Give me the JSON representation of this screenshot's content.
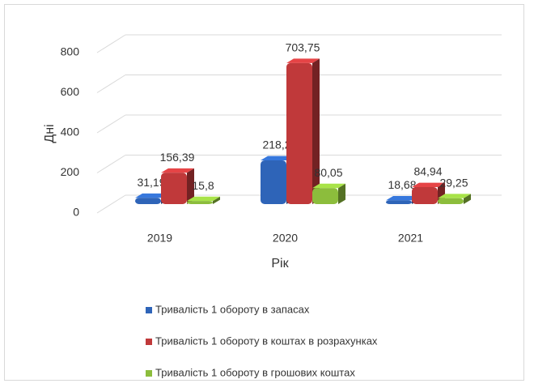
{
  "chart_data": {
    "type": "bar3d",
    "categories": [
      "2019",
      "2020",
      "2021"
    ],
    "series": [
      {
        "name": "Тривалість 1 обороту в запасах",
        "color": "#2e64b8",
        "values": [
          31.19,
          218.2,
          18.68
        ],
        "value_labels": [
          "31,19",
          "218,2",
          "18,68"
        ]
      },
      {
        "name": "Тривалість 1 обороту в коштах в розрахунках",
        "color": "#c0393a",
        "values": [
          156.39,
          703.75,
          84.94
        ],
        "value_labels": [
          "156,39",
          "703,75",
          "84,94"
        ]
      },
      {
        "name": "Тривалість 1 обороту в грошових коштах",
        "color": "#8cbd3c",
        "values": [
          15.8,
          80.05,
          29.25
        ],
        "value_labels": [
          "15,8",
          "80,05",
          "29,25"
        ]
      }
    ],
    "ylim": [
      0,
      800
    ],
    "yticks": [
      0,
      200,
      400,
      600,
      800
    ],
    "xlabel": "Рік",
    "ylabel": "Дні",
    "grid": true,
    "legend": "bottom"
  }
}
